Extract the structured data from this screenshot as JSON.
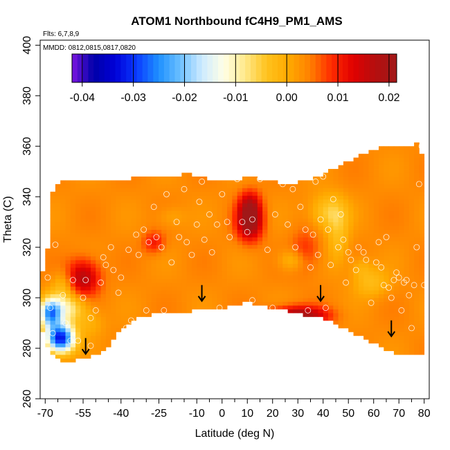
{
  "chart_data": {
    "type": "heatmap",
    "title": "ATOM1 Northbound fC4H9_PM1_AMS",
    "flights_label": "Flts: 6,7,8,9",
    "dates_label": "MMDD: 0812,0815,0817,0820",
    "xlabel": "Latitude (deg N)",
    "ylabel": "Theta (C)",
    "xlim": [
      -72,
      82
    ],
    "ylim": [
      260,
      402
    ],
    "x_ticks": [
      -70,
      -55,
      -40,
      -25,
      -10,
      0,
      10,
      20,
      30,
      40,
      50,
      60,
      70,
      80
    ],
    "x_tick_labels": [
      "-70",
      "-55",
      "-40",
      "-25",
      "-10",
      "0",
      "10",
      "20",
      "30",
      "40",
      "50",
      "60",
      "70",
      "80"
    ],
    "x_minor_ticks": [
      -65,
      -60,
      -50,
      -45,
      -35,
      -30,
      -20,
      -15,
      -5,
      5,
      15,
      25,
      35,
      45,
      55,
      65,
      75
    ],
    "y_ticks": [
      260,
      280,
      300,
      320,
      340,
      360,
      380,
      400
    ],
    "y_tick_labels": [
      "260",
      "280",
      "300",
      "320",
      "340",
      "360",
      "380",
      "400"
    ],
    "colorbar": {
      "range": [
        -0.042,
        0.0215
      ],
      "ticks": [
        -0.04,
        -0.03,
        -0.02,
        -0.01,
        0.0,
        0.01,
        0.02
      ],
      "tick_labels": [
        "-0.04",
        "-0.03",
        "-0.02",
        "-0.01",
        "0.00",
        "0.01",
        "0.02"
      ],
      "colors": [
        "#7b16e0",
        "#0000a8",
        "#0000d8",
        "#0a3cff",
        "#1e90ff",
        "#6cc0ff",
        "#cdeaff",
        "#ffffe6",
        "#ffe98a",
        "#ffc21c",
        "#ffaa00",
        "#ff8000",
        "#ff2a00",
        "#e00000",
        "#b50f0f",
        "#a01818"
      ]
    },
    "coverage_bottom": [
      [
        -72,
        291
      ],
      [
        -70,
        282
      ],
      [
        -68,
        279
      ],
      [
        -66,
        277
      ],
      [
        -64,
        275
      ],
      [
        -60,
        275
      ],
      [
        -55,
        276
      ],
      [
        -49,
        278
      ],
      [
        -44,
        282
      ],
      [
        -40,
        288
      ],
      [
        -36,
        291
      ],
      [
        -30,
        293
      ],
      [
        -20,
        294
      ],
      [
        -10,
        295
      ],
      [
        0,
        296
      ],
      [
        10,
        298
      ],
      [
        20,
        296
      ],
      [
        26,
        295
      ],
      [
        32,
        293
      ],
      [
        40,
        292
      ],
      [
        46,
        289
      ],
      [
        52,
        286
      ],
      [
        58,
        283
      ],
      [
        64,
        280
      ],
      [
        68,
        278
      ],
      [
        72,
        278
      ],
      [
        76,
        278
      ],
      [
        80,
        278
      ],
      [
        80,
        302
      ]
    ],
    "coverage_top": [
      [
        -72,
        302
      ],
      [
        -71,
        310
      ],
      [
        -69,
        320
      ],
      [
        -68,
        330
      ],
      [
        -68,
        340
      ],
      [
        -64,
        346
      ],
      [
        -40,
        347
      ],
      [
        -25,
        348
      ],
      [
        -13,
        349
      ],
      [
        -5,
        347
      ],
      [
        0,
        347
      ],
      [
        3,
        346
      ],
      [
        10,
        348
      ],
      [
        20,
        346
      ],
      [
        27,
        345
      ],
      [
        35,
        347
      ],
      [
        40,
        349
      ],
      [
        50,
        354
      ],
      [
        60,
        359
      ],
      [
        70,
        360
      ],
      [
        77,
        361
      ],
      [
        80,
        355
      ],
      [
        80,
        340
      ]
    ],
    "sample_points": [
      [
        -69,
        308
      ],
      [
        -68,
        296
      ],
      [
        -67,
        286
      ],
      [
        -66,
        321
      ],
      [
        -63,
        301
      ],
      [
        -62,
        290
      ],
      [
        -60,
        283
      ],
      [
        -59,
        307
      ],
      [
        -57,
        283
      ],
      [
        -55,
        300
      ],
      [
        -54,
        307
      ],
      [
        -52,
        292
      ],
      [
        -52,
        281
      ],
      [
        -50,
        295
      ],
      [
        -48,
        306
      ],
      [
        -47,
        316
      ],
      [
        -46,
        313
      ],
      [
        -44,
        320
      ],
      [
        -43,
        311
      ],
      [
        -41,
        302
      ],
      [
        -40,
        308
      ],
      [
        -38,
        288
      ],
      [
        -37,
        319
      ],
      [
        -36,
        291
      ],
      [
        -34,
        325
      ],
      [
        -33,
        317
      ],
      [
        -31,
        327
      ],
      [
        -30,
        295
      ],
      [
        -29,
        322
      ],
      [
        -27,
        336
      ],
      [
        -26,
        324
      ],
      [
        -24,
        320
      ],
      [
        -23,
        295
      ],
      [
        -22,
        341
      ],
      [
        -20,
        314
      ],
      [
        -18,
        330
      ],
      [
        -17,
        324
      ],
      [
        -15,
        343
      ],
      [
        -14,
        322
      ],
      [
        -12,
        317
      ],
      [
        -10,
        329
      ],
      [
        -9,
        338
      ],
      [
        -8,
        346
      ],
      [
        -7,
        323
      ],
      [
        -5,
        333
      ],
      [
        -4,
        318
      ],
      [
        -2,
        329
      ],
      [
        -1,
        296
      ],
      [
        0,
        341
      ],
      [
        2,
        330
      ],
      [
        3,
        324
      ],
      [
        6,
        347
      ],
      [
        8,
        330
      ],
      [
        10,
        326
      ],
      [
        12,
        299
      ],
      [
        12,
        331
      ],
      [
        15,
        347
      ],
      [
        18,
        319
      ],
      [
        20,
        296
      ],
      [
        21,
        333
      ],
      [
        24,
        345
      ],
      [
        26,
        329
      ],
      [
        28,
        343
      ],
      [
        29,
        320
      ],
      [
        31,
        336
      ],
      [
        33,
        327
      ],
      [
        34,
        295
      ],
      [
        35,
        312
      ],
      [
        36,
        325
      ],
      [
        37,
        346
      ],
      [
        38,
        317
      ],
      [
        39,
        331
      ],
      [
        40,
        348
      ],
      [
        41,
        296
      ],
      [
        42,
        327
      ],
      [
        43,
        313
      ],
      [
        44,
        339
      ],
      [
        46,
        320
      ],
      [
        47,
        333
      ],
      [
        48,
        323
      ],
      [
        49,
        306
      ],
      [
        50,
        318
      ],
      [
        51,
        315
      ],
      [
        53,
        311
      ],
      [
        54,
        320
      ],
      [
        56,
        318
      ],
      [
        57,
        315
      ],
      [
        59,
        298
      ],
      [
        61,
        314
      ],
      [
        62,
        322
      ],
      [
        63,
        312
      ],
      [
        64,
        305
      ],
      [
        65,
        324
      ],
      [
        66,
        304
      ],
      [
        67,
        300
      ],
      [
        68,
        307
      ],
      [
        69,
        310
      ],
      [
        70,
        308
      ],
      [
        71,
        295
      ],
      [
        72,
        306
      ],
      [
        73,
        307
      ],
      [
        74,
        301
      ],
      [
        75,
        288
      ],
      [
        76,
        305
      ],
      [
        77,
        320
      ],
      [
        78,
        345
      ],
      [
        79,
        360
      ],
      [
        80,
        305
      ]
    ],
    "arrows": [
      [
        -54,
        278
      ],
      [
        -8,
        299
      ],
      [
        39,
        299
      ],
      [
        67,
        285
      ]
    ],
    "anomalies": [
      {
        "x": -55,
        "y": 308,
        "sx": 4.5,
        "sy": 5.0,
        "v": 0.014
      },
      {
        "x": 11,
        "y": 330,
        "sx": 3.5,
        "sy": 5.0,
        "v": 0.018
      },
      {
        "x": 11,
        "y": 337,
        "sx": 3.0,
        "sy": 4.0,
        "v": 0.01
      },
      {
        "x": -27,
        "y": 322,
        "sx": 3.0,
        "sy": 3.0,
        "v": 0.007
      },
      {
        "x": 33,
        "y": 318,
        "sx": 4.0,
        "sy": 6.0,
        "v": 0.006
      },
      {
        "x": 30,
        "y": 293,
        "sx": 8.0,
        "sy": 2.5,
        "v": 0.017
      },
      {
        "x": 42,
        "y": 334,
        "sx": 5.0,
        "sy": 5.0,
        "v": -0.0085
      },
      {
        "x": 46,
        "y": 324,
        "sx": 3.0,
        "sy": 8.0,
        "v": -0.006
      },
      {
        "x": 28,
        "y": 315,
        "sx": 4.0,
        "sy": 3.0,
        "v": -0.006
      },
      {
        "x": 59,
        "y": 306,
        "sx": 5.0,
        "sy": 4.0,
        "v": -0.006
      },
      {
        "x": 55,
        "y": 312,
        "sx": 3.0,
        "sy": 3.0,
        "v": -0.004
      },
      {
        "x": -20,
        "y": 332,
        "sx": 4.0,
        "sy": 3.0,
        "v": -0.003
      },
      {
        "x": -64,
        "y": 284,
        "sx": 4.0,
        "sy": 4.0,
        "v": -0.036
      },
      {
        "x": -68,
        "y": 294,
        "sx": 3.0,
        "sy": 4.0,
        "v": -0.025
      },
      {
        "x": -61,
        "y": 296,
        "sx": 5.0,
        "sy": 4.0,
        "v": -0.012
      },
      {
        "x": -63,
        "y": 305,
        "sx": 3.0,
        "sy": 4.0,
        "v": -0.006
      },
      {
        "x": -52,
        "y": 290,
        "sx": 4.0,
        "sy": 4.0,
        "v": -0.004
      }
    ],
    "baseline_value": 0.0035
  }
}
